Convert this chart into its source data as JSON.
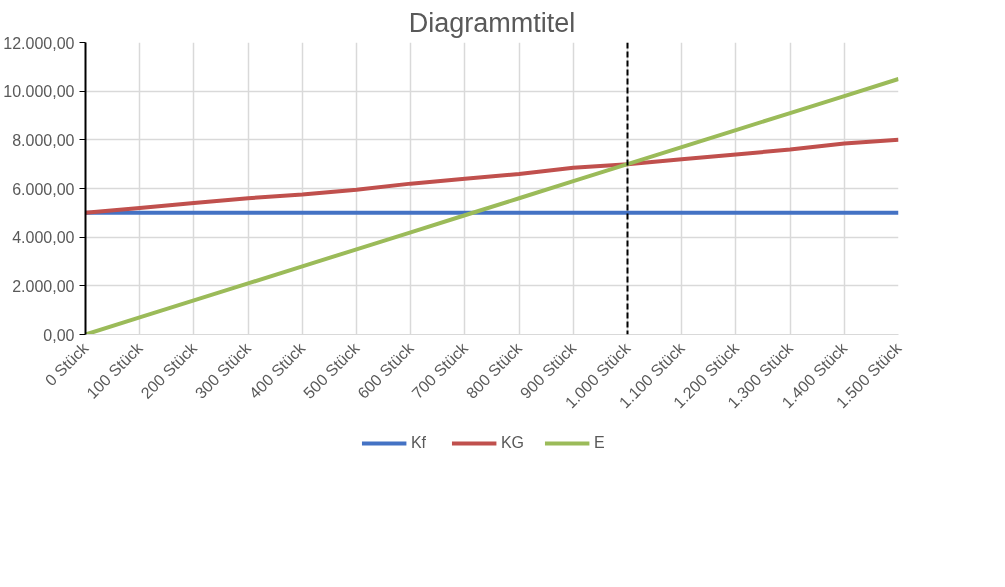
{
  "chart_data": {
    "type": "line",
    "title": "Diagrammtitel",
    "categories": [
      "0 Stück",
      "100 Stück",
      "200 Stück",
      "300 Stück",
      "400 Stück",
      "500 Stück",
      "600 Stück",
      "700 Stück",
      "800 Stück",
      "900 Stück",
      "1.000 Stück",
      "1.100 Stück",
      "1.200 Stück",
      "1.300 Stück",
      "1.400 Stück",
      "1.500 Stück"
    ],
    "series": [
      {
        "name": "Kf",
        "color": "#4472c4",
        "values": [
          5000,
          5000,
          5000,
          5000,
          5000,
          5000,
          5000,
          5000,
          5000,
          5000,
          5000,
          5000,
          5000,
          5000,
          5000,
          5000
        ]
      },
      {
        "name": "KG",
        "color": "#c0504d",
        "values": [
          5000,
          5200,
          5400,
          5600,
          5750,
          5950,
          6200,
          6400,
          6600,
          6850,
          7000,
          7200,
          7400,
          7600,
          7850,
          8000
        ]
      },
      {
        "name": "E",
        "color": "#9bbb59",
        "values": [
          0,
          700,
          1400,
          2100,
          2800,
          3500,
          4200,
          4900,
          5600,
          6300,
          7000,
          7700,
          8400,
          9100,
          9800,
          10500
        ]
      }
    ],
    "ylim": [
      0,
      12000
    ],
    "yticks": [
      {
        "value": 0,
        "label": "0,00"
      },
      {
        "value": 2000,
        "label": "2.000,00"
      },
      {
        "value": 4000,
        "label": "4.000,00"
      },
      {
        "value": 6000,
        "label": "6.000,00"
      },
      {
        "value": 8000,
        "label": "8.000,00"
      },
      {
        "value": 10000,
        "label": "10.000,00"
      },
      {
        "value": 12000,
        "label": "12.000,00"
      }
    ],
    "ref_lines": [
      {
        "axis": "x",
        "value": "1.000 Stück",
        "color": "#000000",
        "line_style": "dashed"
      }
    ],
    "grid": true,
    "legend": "bottom",
    "marker": "none",
    "line_style": "solid"
  }
}
